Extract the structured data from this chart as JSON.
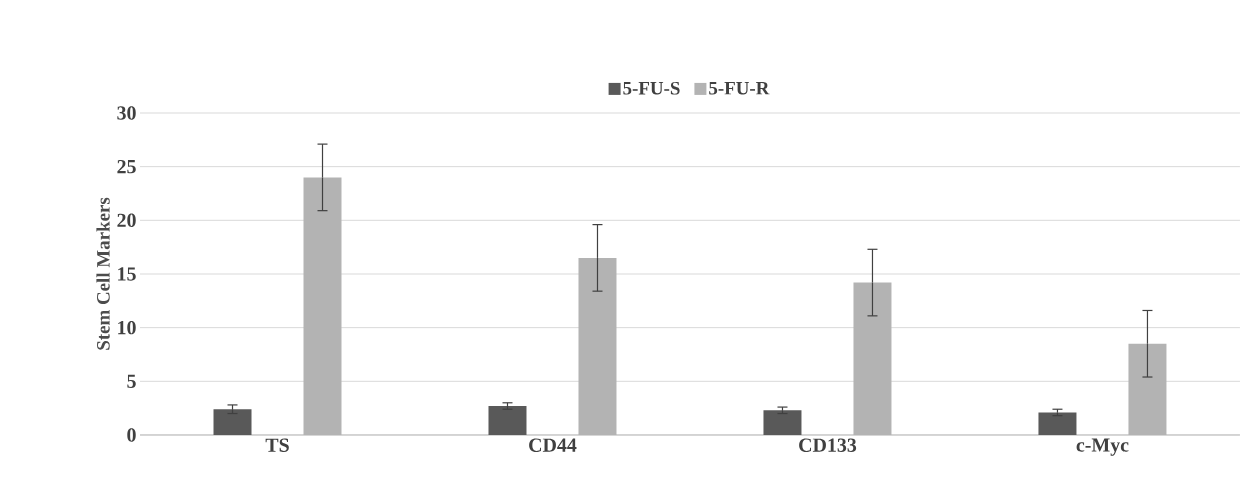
{
  "chart_data": {
    "type": "bar",
    "ylabel": "Stem Cell Markers",
    "categories": [
      "TS",
      "CD44",
      "CD133",
      "c-Myc"
    ],
    "series": [
      {
        "name": "5-FU-S",
        "color": "#595959",
        "values": [
          2.4,
          2.7,
          2.3,
          2.1
        ],
        "errors": [
          0.4,
          0.3,
          0.3,
          0.3
        ]
      },
      {
        "name": "5-FU-R",
        "color": "#b3b3b3",
        "values": [
          24.0,
          16.5,
          14.2,
          8.5
        ],
        "errors": [
          3.1,
          3.1,
          3.1,
          3.1
        ]
      }
    ],
    "ylim": [
      0,
      30
    ],
    "yticks": [
      0,
      5,
      10,
      15,
      20,
      25,
      30
    ],
    "grid": "y",
    "legend": "top"
  }
}
